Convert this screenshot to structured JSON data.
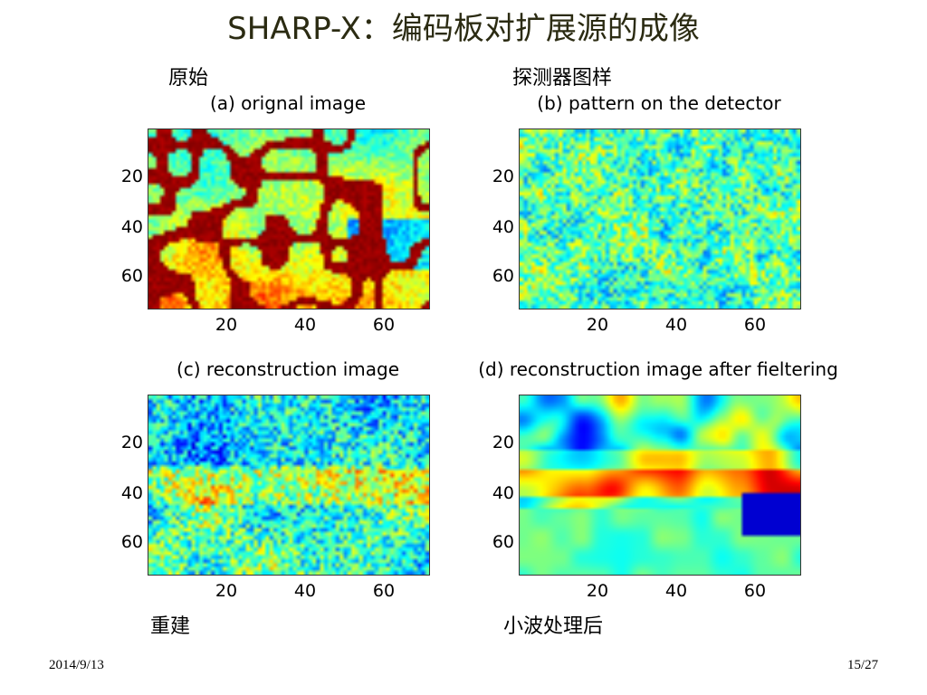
{
  "slide": {
    "title": "SHARP-X：编码板对扩展源的成像",
    "date": "2014/9/13",
    "page": "15/27"
  },
  "labels": {
    "original_cn": "原始",
    "detector_cn": "探测器图样",
    "reconstruction_cn": "重建",
    "wavelet_cn": "小波处理后"
  },
  "colors": {
    "title": "#2b2b12",
    "colormap": "jet"
  },
  "chart_data": [
    {
      "type": "heatmap",
      "title": "(a) orignal image",
      "xticks": [
        "20",
        "40",
        "60"
      ],
      "yticks": [
        "20",
        "40",
        "60"
      ],
      "xlim": [
        0,
        72
      ],
      "ylim": [
        72,
        0
      ],
      "colormap": "jet",
      "pattern": "structured: dark-red filament network across a blue-cyan field, yellow/orange lower region, dark-blue patch lower right"
    },
    {
      "type": "heatmap",
      "title": "(b) pattern on the detector",
      "xticks": [
        "20",
        "40",
        "60"
      ],
      "yticks": [
        "20",
        "40",
        "60"
      ],
      "xlim": [
        0,
        72
      ],
      "ylim": [
        72,
        0
      ],
      "colormap": "jet",
      "pattern": "noisy: mostly cyan-green-yellow speckle with scattered blue and orange pixels"
    },
    {
      "type": "heatmap",
      "title": "(c) reconstruction image",
      "xticks": [
        "20",
        "40",
        "60"
      ],
      "yticks": [
        "20",
        "40",
        "60"
      ],
      "xlim": [
        0,
        72
      ],
      "ylim": [
        72,
        0
      ],
      "colormap": "jet",
      "pattern": "noisy reconstruction: blue regions upper area, orange speckle middle, cyan-yellow lower region"
    },
    {
      "type": "heatmap",
      "title": "(d) reconstruction image after fieltering",
      "xticks": [
        "20",
        "40",
        "60"
      ],
      "yticks": [
        "20",
        "40",
        "60"
      ],
      "xlim": [
        0,
        72
      ],
      "ylim": [
        72,
        0
      ],
      "colormap": "jet",
      "pattern": "smoothed: blue blobs top, orange-red band middle, green-cyan lower area, dark-blue patch lower right"
    }
  ]
}
